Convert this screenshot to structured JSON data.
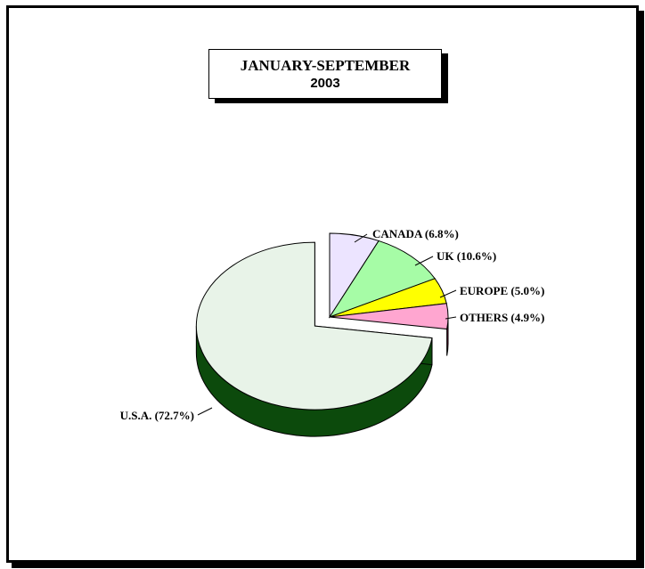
{
  "title": {
    "line1": "JANUARY-SEPTEMBER",
    "line2": "2003"
  },
  "chart_data": {
    "type": "pie",
    "title": "JANUARY-SEPTEMBER 2003",
    "three_d": true,
    "start_angle_deg": 90,
    "direction": "clockwise",
    "slices": [
      {
        "name": "CANADA",
        "value": 6.8,
        "label": "CANADA  (6.8%)",
        "color": "#ece4ff",
        "side_color": "#6b5f86",
        "exploded": false
      },
      {
        "name": "UK",
        "value": 10.6,
        "label": "UK  (10.6%)",
        "color": "#a6fca6",
        "side_color": "#2f7a2f",
        "exploded": false
      },
      {
        "name": "EUROPE",
        "value": 5.0,
        "label": "EUROPE  (5.0%)",
        "color": "#ffff00",
        "side_color": "#7f7f00",
        "exploded": false
      },
      {
        "name": "OTHERS",
        "value": 4.9,
        "label": "OTHERS  (4.9%)",
        "color": "#ffa6d0",
        "side_color": "#7b0f3e",
        "exploded": false
      },
      {
        "name": "U.S.A.",
        "value": 72.7,
        "label": "U.S.A.  (72.7%)",
        "color": "#e8f3e8",
        "side_color": "#0c4a0c",
        "exploded": true
      }
    ]
  }
}
